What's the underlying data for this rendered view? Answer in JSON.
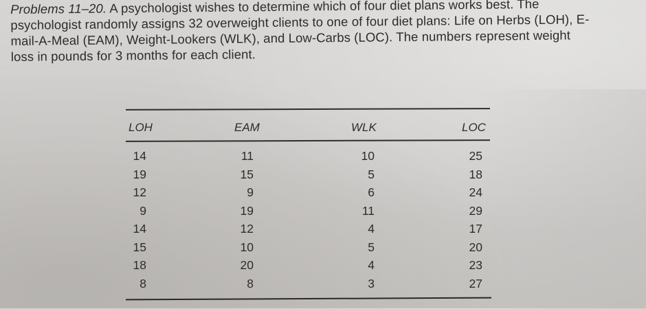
{
  "problem": {
    "lead": "Problems 11–20.",
    "text": "A psychologist wishes to determine which of four diet plans works best. The psychologist randomly assigns 32 overweight clients to one of four diet plans: Life on Herbs (LOH), E-mail-A-Meal (EAM), Weight-Lookers (WLK), and Low-Carbs (LOC). The numbers represent weight loss in pounds for 3 months for each client."
  },
  "table": {
    "headers": [
      "LOH",
      "EAM",
      "WLK",
      "LOC"
    ],
    "columns": {
      "LOH": [
        "14",
        "19",
        "12",
        "9",
        "14",
        "15",
        "18",
        "8"
      ],
      "EAM": [
        "11",
        "15",
        "9",
        "19",
        "12",
        "10",
        "20",
        "8"
      ],
      "WLK": [
        "10",
        "5",
        "6",
        "11",
        "4",
        "5",
        "4",
        "3"
      ],
      "LOC": [
        "25",
        "18",
        "24",
        "29",
        "17",
        "20",
        "23",
        "27"
      ]
    }
  }
}
